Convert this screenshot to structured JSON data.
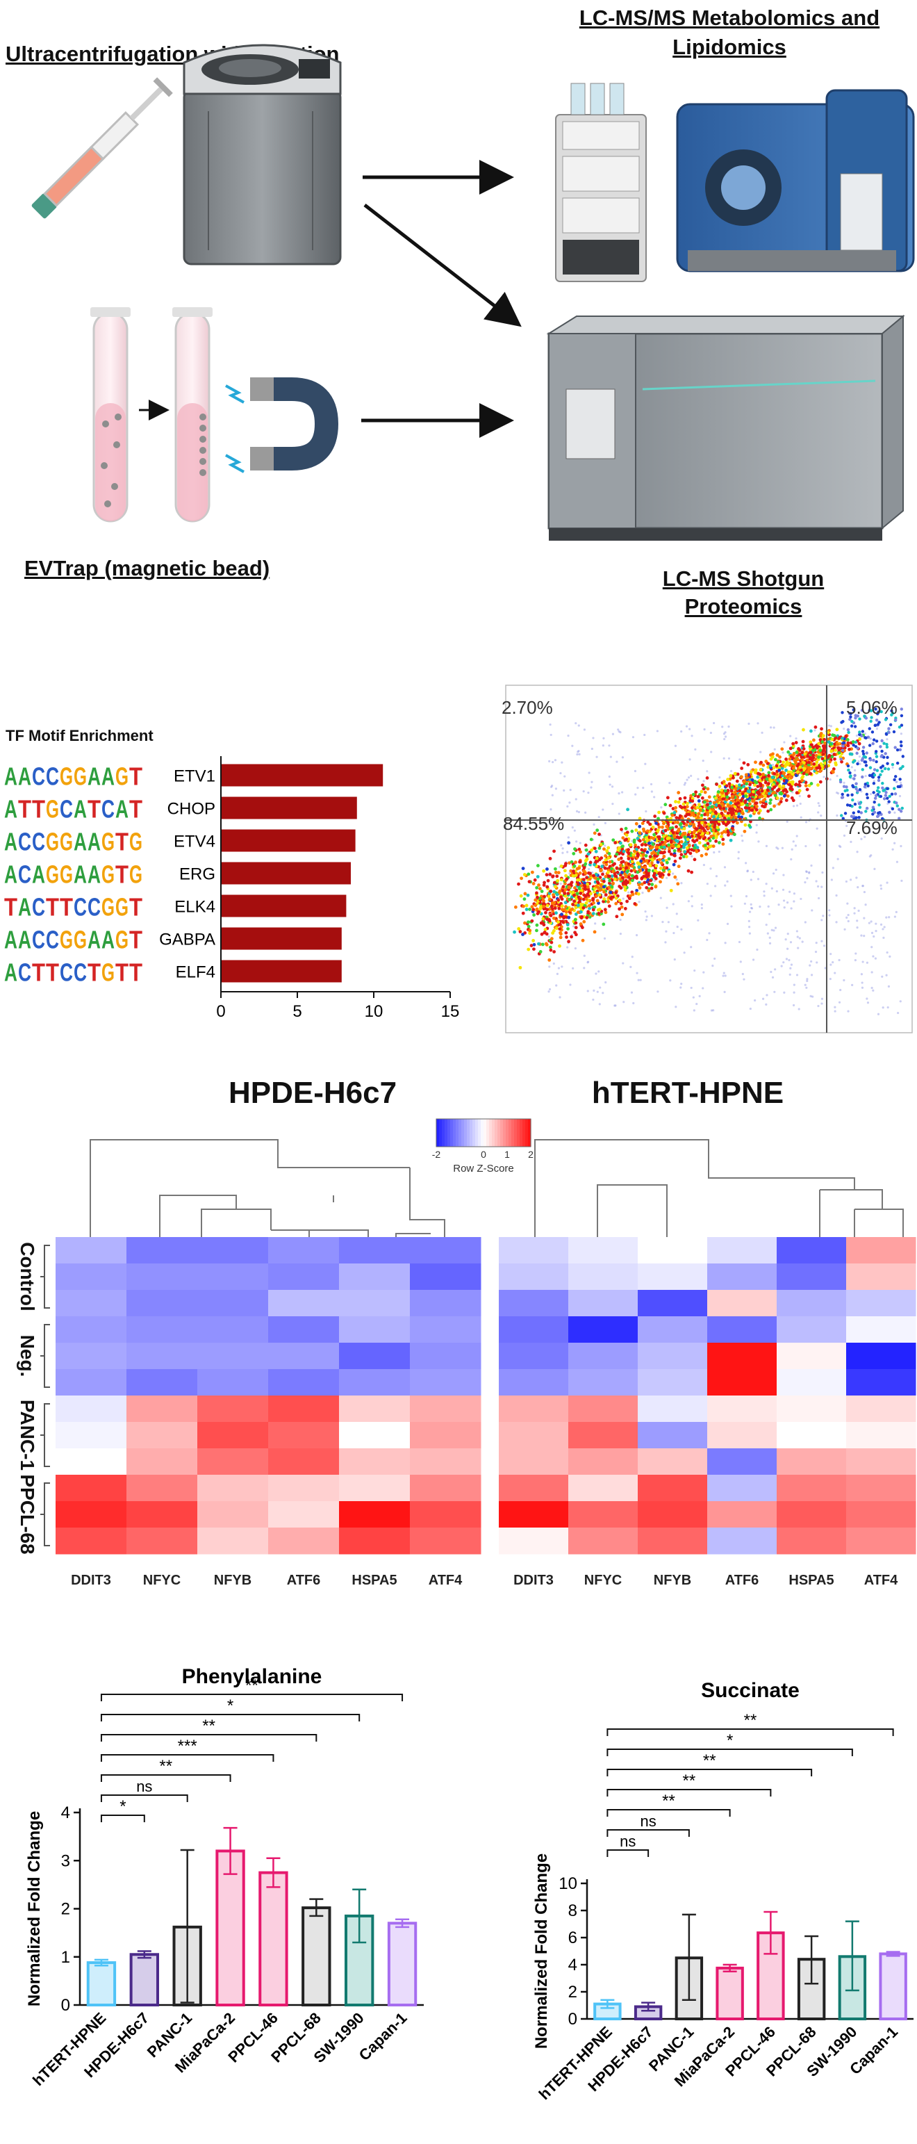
{
  "workflow": {
    "title_ultra": "Ultracentrifugation with filtration",
    "title_metab_1": "LC-MS/MS Metabolomics and",
    "title_metab_2": "Lipidomics",
    "title_evtrap": "EVTrap (magnetic bead)",
    "title_prot_1": "LC-MS Shotgun",
    "title_prot_2": "Proteomics"
  },
  "tf_chart": {
    "title": "TF Motif Enrichment",
    "chart_data": {
      "type": "bar",
      "orientation": "horizontal",
      "categories": [
        "ETV1",
        "CHOP",
        "ETV4",
        "ERG",
        "ELK4",
        "GABPA",
        "ELF4"
      ],
      "motifs": [
        "AACCGGAAGT",
        "ATTGCATCAT",
        "ACCGGAAGTG",
        "ACAGGAAGTG",
        "TACTTCCGGT",
        "AACCGGAAGT",
        "ACTTCCTGTT"
      ],
      "values": [
        10.6,
        8.9,
        8.8,
        8.5,
        8.2,
        7.9,
        7.9
      ],
      "xlim": [
        0,
        15
      ],
      "ticks": [
        "0",
        "5",
        "10",
        "15"
      ],
      "color": "#a50e0e"
    }
  },
  "flow": {
    "q_ul": "2.70%",
    "q_ur": "5.06%",
    "q_ll": "84.55%",
    "q_lr": "7.69%"
  },
  "heatmaps": {
    "title_left": "HPDE-H6c7",
    "title_right": "hTERT-HPNE",
    "legend_ticks": [
      "-2",
      "0",
      "1",
      "2"
    ],
    "legend_label": "Row Z-Score",
    "row_groups": [
      "Control",
      "Neg.",
      "PANC-1",
      "PPCL-68"
    ],
    "columns": [
      "DDIT3",
      "NFYC",
      "NFYB",
      "ATF6",
      "HSPA5",
      "ATF4"
    ],
    "left_values": [
      [
        -0.7,
        -1.2,
        -1.2,
        -1.0,
        -1.2,
        -1.2
      ],
      [
        -0.9,
        -1.0,
        -1.0,
        -1.1,
        -0.7,
        -1.4
      ],
      [
        -0.8,
        -1.1,
        -1.1,
        -0.6,
        -0.6,
        -1.0
      ],
      [
        -0.9,
        -1.0,
        -1.0,
        -1.2,
        -0.7,
        -0.9
      ],
      [
        -0.8,
        -0.9,
        -0.9,
        -0.9,
        -1.4,
        -1.0
      ],
      [
        -0.9,
        -1.2,
        -1.0,
        -1.2,
        -1.0,
        -0.9
      ],
      [
        -0.2,
        0.8,
        1.3,
        1.5,
        0.4,
        0.7
      ],
      [
        -0.1,
        0.6,
        1.5,
        1.3,
        0.0,
        0.8
      ],
      [
        0.0,
        0.7,
        1.2,
        1.4,
        0.5,
        0.6
      ],
      [
        1.6,
        1.1,
        0.5,
        0.4,
        0.3,
        1.0
      ],
      [
        1.8,
        1.6,
        0.6,
        0.3,
        2.0,
        1.5
      ],
      [
        1.5,
        1.3,
        0.4,
        0.7,
        1.6,
        1.3
      ]
    ],
    "right_values": [
      [
        -0.4,
        -0.2,
        0.0,
        -0.3,
        -1.5,
        0.8
      ],
      [
        -0.5,
        -0.3,
        -0.2,
        -0.8,
        -1.3,
        0.5
      ],
      [
        -1.1,
        -0.6,
        -1.6,
        0.4,
        -0.7,
        -0.5
      ],
      [
        -1.3,
        -1.9,
        -0.8,
        -1.3,
        -0.6,
        -0.1
      ],
      [
        -1.2,
        -0.9,
        -0.6,
        2.0,
        0.1,
        -2.0
      ],
      [
        -1.0,
        -0.8,
        -0.5,
        2.0,
        -0.1,
        -1.8
      ],
      [
        0.7,
        1.0,
        -0.2,
        0.2,
        0.1,
        0.3
      ],
      [
        0.6,
        1.3,
        -0.9,
        0.3,
        0.0,
        0.1
      ],
      [
        0.6,
        0.8,
        0.5,
        -1.2,
        0.7,
        0.6
      ],
      [
        1.2,
        0.3,
        1.5,
        -0.6,
        1.1,
        1.0
      ],
      [
        2.0,
        1.3,
        1.6,
        0.9,
        1.4,
        1.2
      ],
      [
        0.1,
        1.0,
        1.3,
        -0.6,
        1.2,
        1.0
      ]
    ]
  },
  "chart_data": [
    {
      "type": "bar",
      "title": "Phenylalanine",
      "ylabel": "Normalized Fold Change",
      "ylim": [
        0,
        4
      ],
      "yticks": [
        "0",
        "1",
        "2",
        "3",
        "4"
      ],
      "categories": [
        "hTERT-HPNE",
        "HPDE-H6c7",
        "PANC-1",
        "MiaPaCa-2",
        "PPCL-46",
        "PPCL-68",
        "SW-1990",
        "Capan-1"
      ],
      "values": [
        0.88,
        1.05,
        1.62,
        3.2,
        2.75,
        2.02,
        1.85,
        1.7
      ],
      "err_low": [
        0.82,
        0.98,
        0.05,
        2.72,
        2.45,
        1.85,
        1.3,
        1.62
      ],
      "err_high": [
        0.94,
        1.12,
        3.22,
        3.68,
        3.05,
        2.2,
        2.4,
        1.78
      ],
      "colors": [
        "#4fc3f7",
        "#4b2a8a",
        "#222222",
        "#e6196e",
        "#e6196e",
        "#222222",
        "#127a6f",
        "#a66df0"
      ],
      "fills": [
        "#cfeefc",
        "#d6cdea",
        "#e4e4e4",
        "#fbcfe0",
        "#fbcfe0",
        "#e4e4e4",
        "#c8e7e3",
        "#eadcfc"
      ],
      "sig": [
        {
          "target": 1,
          "label": "*"
        },
        {
          "target": 2,
          "label": "ns"
        },
        {
          "target": 3,
          "label": "**"
        },
        {
          "target": 4,
          "label": "***"
        },
        {
          "target": 5,
          "label": "**"
        },
        {
          "target": 6,
          "label": "*"
        },
        {
          "target": 7,
          "label": "**"
        }
      ]
    },
    {
      "type": "bar",
      "title": "Succinate",
      "ylabel": "Normalized Fold Change",
      "ylim": [
        0,
        10
      ],
      "yticks": [
        "0",
        "2",
        "4",
        "6",
        "8",
        "10"
      ],
      "categories": [
        "hTERT-HPNE",
        "HPDE-H6c7",
        "PANC-1",
        "MiaPaCa-2",
        "PPCL-46",
        "PPCL-68",
        "SW-1990",
        "Capan-1"
      ],
      "values": [
        1.1,
        0.9,
        4.5,
        3.75,
        6.35,
        4.4,
        4.6,
        4.8
      ],
      "err_low": [
        0.8,
        0.6,
        1.4,
        3.5,
        4.8,
        2.6,
        2.1,
        4.65
      ],
      "err_high": [
        1.4,
        1.2,
        7.7,
        4.0,
        7.9,
        6.1,
        7.2,
        4.95
      ],
      "colors": [
        "#4fc3f7",
        "#4b2a8a",
        "#222222",
        "#e6196e",
        "#e6196e",
        "#222222",
        "#127a6f",
        "#a66df0"
      ],
      "fills": [
        "#cfeefc",
        "#d6cdea",
        "#e4e4e4",
        "#fbcfe0",
        "#fbcfe0",
        "#e4e4e4",
        "#c8e7e3",
        "#eadcfc"
      ],
      "sig": [
        {
          "target": 1,
          "label": "ns"
        },
        {
          "target": 2,
          "label": "ns"
        },
        {
          "target": 3,
          "label": "**"
        },
        {
          "target": 4,
          "label": "**"
        },
        {
          "target": 5,
          "label": "**"
        },
        {
          "target": 6,
          "label": "*"
        },
        {
          "target": 7,
          "label": "**"
        }
      ]
    }
  ]
}
